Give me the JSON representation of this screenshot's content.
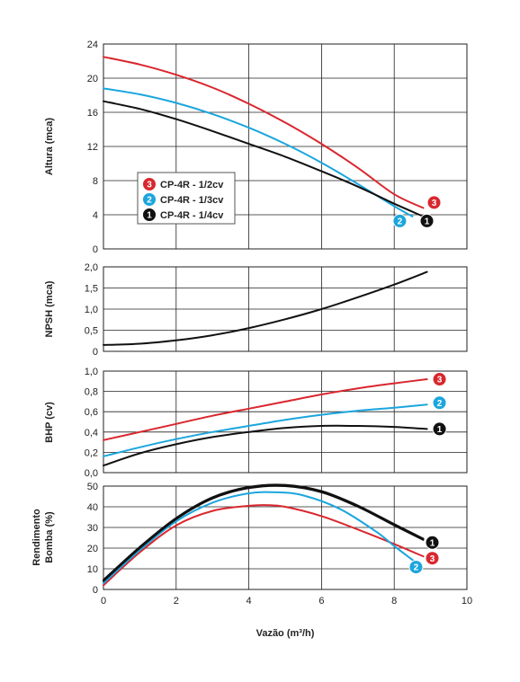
{
  "chart_data": [
    {
      "type": "line",
      "panel": "altura",
      "ylabel": "Altura (mca)",
      "xlim": [
        0,
        10
      ],
      "ylim": [
        0,
        24
      ],
      "yticks": [
        "0",
        "4",
        "8",
        "12",
        "16",
        "20",
        "24"
      ],
      "legend": {
        "placement": "center-left",
        "entries": [
          {
            "badge": "3",
            "label": "CP-4R - 1/2cv",
            "color": "#d9272e"
          },
          {
            "badge": "2",
            "label": "CP-4R - 1/3cv",
            "color": "#1ba6dd"
          },
          {
            "badge": "1",
            "label": "CP-4R - 1/4cv",
            "color": "#111111"
          }
        ]
      },
      "series": [
        {
          "badge": "3",
          "color": "#d9272e",
          "end_x": 8.8,
          "x": [
            0,
            1,
            2,
            3,
            4,
            5,
            6,
            7,
            8,
            8.8
          ],
          "y": [
            22.5,
            21.6,
            20.4,
            18.9,
            17.0,
            14.8,
            12.3,
            9.5,
            6.4,
            4.8
          ]
        },
        {
          "badge": "2",
          "color": "#1ba6dd",
          "end_x": 8.5,
          "x": [
            0,
            1,
            2,
            3,
            4,
            5,
            6,
            7,
            8,
            8.5
          ],
          "y": [
            18.8,
            18.1,
            17.1,
            15.8,
            14.2,
            12.3,
            10.1,
            7.6,
            5.0,
            3.8
          ]
        },
        {
          "badge": "1",
          "color": "#111111",
          "end_x": 8.8,
          "x": [
            0,
            1,
            2,
            3,
            4,
            5,
            6,
            7,
            8,
            8.8
          ],
          "y": [
            17.3,
            16.4,
            15.2,
            13.8,
            12.3,
            10.8,
            9.1,
            7.3,
            5.3,
            3.8
          ]
        }
      ]
    },
    {
      "type": "line",
      "panel": "npsh",
      "ylabel": "NPSH (mca)",
      "xlim": [
        0,
        10
      ],
      "ylim": [
        0,
        2.0
      ],
      "yticks": [
        "0",
        "0,5",
        "1,0",
        "1,5",
        "2,0"
      ],
      "series": [
        {
          "color": "#111111",
          "x": [
            0,
            1,
            2,
            3,
            4,
            5,
            6,
            7,
            8,
            8.9
          ],
          "y": [
            0.15,
            0.18,
            0.26,
            0.38,
            0.55,
            0.76,
            1.0,
            1.28,
            1.58,
            1.88
          ]
        }
      ]
    },
    {
      "type": "line",
      "panel": "bhp",
      "ylabel": "BHP (cv)",
      "xlim": [
        0,
        10
      ],
      "ylim": [
        0,
        1.0
      ],
      "yticks": [
        "0,0",
        "0,2",
        "0,4",
        "0,6",
        "0,8",
        "1,0"
      ],
      "series": [
        {
          "badge": "3",
          "color": "#d9272e",
          "end_x": 8.9,
          "x": [
            0,
            1,
            2,
            3,
            4,
            5,
            6,
            7,
            8,
            8.9
          ],
          "y": [
            0.32,
            0.4,
            0.48,
            0.56,
            0.63,
            0.7,
            0.77,
            0.83,
            0.88,
            0.92
          ]
        },
        {
          "badge": "2",
          "color": "#1ba6dd",
          "end_x": 8.9,
          "x": [
            0,
            1,
            2,
            3,
            4,
            5,
            6,
            7,
            8,
            8.9
          ],
          "y": [
            0.16,
            0.25,
            0.33,
            0.4,
            0.46,
            0.52,
            0.57,
            0.61,
            0.64,
            0.67
          ]
        },
        {
          "badge": "1",
          "color": "#111111",
          "end_x": 8.9,
          "x": [
            0,
            1,
            2,
            3,
            4,
            5,
            6,
            7,
            8,
            8.9
          ],
          "y": [
            0.07,
            0.19,
            0.28,
            0.35,
            0.4,
            0.44,
            0.46,
            0.46,
            0.45,
            0.43
          ]
        }
      ]
    },
    {
      "type": "line",
      "panel": "rendimento",
      "ylabel_lines": [
        "Rendimento",
        "Bomba (%)"
      ],
      "xlabel": "Vazão (m³/h)",
      "xlim": [
        0,
        10
      ],
      "ylim": [
        0,
        50
      ],
      "xticks": [
        "0",
        "2",
        "4",
        "6",
        "8",
        "10"
      ],
      "yticks": [
        "0",
        "10",
        "20",
        "30",
        "40",
        "50"
      ],
      "series": [
        {
          "badge": "3",
          "color": "#d9272e",
          "end_x": 8.8,
          "x": [
            0,
            1,
            2,
            3,
            4,
            4.5,
            5,
            6,
            7,
            8,
            8.8
          ],
          "y": [
            2,
            18,
            31,
            38,
            40.5,
            40.8,
            40,
            35.5,
            29,
            22,
            16
          ]
        },
        {
          "badge": "2",
          "color": "#1ba6dd",
          "end_x": 8.6,
          "x": [
            0,
            1,
            2,
            3,
            4,
            4.8,
            5.5,
            6.5,
            7.5,
            8,
            8.6
          ],
          "y": [
            3,
            19,
            33,
            42,
            46.5,
            47,
            45.5,
            39,
            28,
            21,
            13
          ]
        },
        {
          "badge": "1",
          "color": "#111111",
          "end_x": 8.8,
          "x": [
            0,
            1,
            2,
            3,
            4,
            5,
            6,
            7,
            8,
            8.8
          ],
          "y": [
            4,
            20,
            34,
            44,
            49,
            50,
            47,
            40,
            31,
            24
          ]
        },
        {
          "color": "#111111",
          "x": [
            0,
            1,
            2,
            3,
            4,
            5,
            6,
            7,
            8,
            8.8
          ],
          "y": [
            4.6,
            20.6,
            34.6,
            44.6,
            49.6,
            50.6,
            47.6,
            40.6,
            31.6,
            24.6
          ]
        }
      ]
    }
  ]
}
